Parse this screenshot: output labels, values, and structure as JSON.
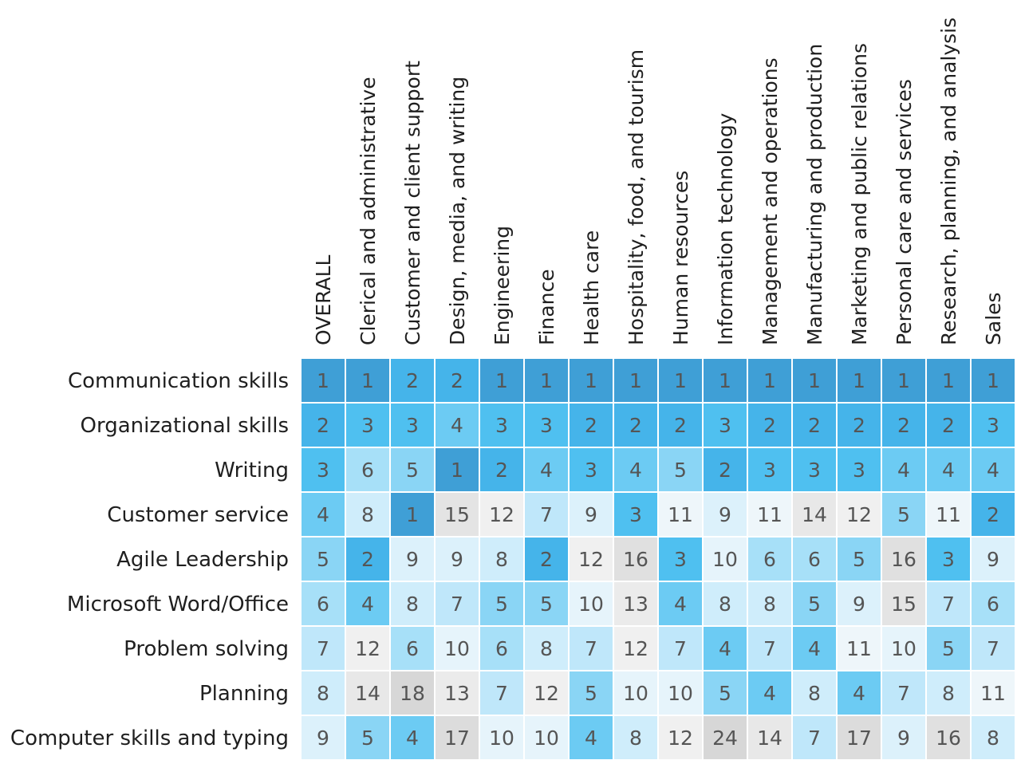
{
  "chart_data": {
    "type": "heatmap",
    "value_meaning": "rank",
    "columns": [
      "OVERALL",
      "Clerical and administrative",
      "Customer and client support",
      "Design, media, and writing",
      "Engineering",
      "Finance",
      "Health care",
      "Hospitality, food, and tourism",
      "Human resources",
      "Information technology",
      "Management and operations",
      "Manufacturing and production",
      "Marketing and public relations",
      "Personal care and services",
      "Research, planning, and analysis",
      "Sales"
    ],
    "rows": [
      "Communication skills",
      "Organizational skills",
      "Writing",
      "Customer service",
      "Agile Leadership",
      "Microsoft Word/Office",
      "Problem solving",
      "Planning",
      "Computer skills and typing"
    ],
    "values": [
      [
        1,
        1,
        2,
        2,
        1,
        1,
        1,
        1,
        1,
        1,
        1,
        1,
        1,
        1,
        1,
        1
      ],
      [
        2,
        3,
        3,
        4,
        3,
        3,
        2,
        2,
        2,
        3,
        2,
        2,
        2,
        2,
        2,
        3
      ],
      [
        3,
        6,
        5,
        1,
        2,
        4,
        3,
        4,
        5,
        2,
        3,
        3,
        3,
        4,
        4,
        4
      ],
      [
        4,
        8,
        1,
        15,
        12,
        7,
        9,
        3,
        11,
        9,
        11,
        14,
        12,
        5,
        11,
        2
      ],
      [
        5,
        2,
        9,
        9,
        8,
        2,
        12,
        16,
        3,
        10,
        6,
        6,
        5,
        16,
        3,
        9
      ],
      [
        6,
        4,
        8,
        7,
        5,
        5,
        10,
        13,
        4,
        8,
        8,
        5,
        9,
        15,
        7,
        6
      ],
      [
        7,
        12,
        6,
        10,
        6,
        8,
        7,
        12,
        7,
        4,
        7,
        4,
        11,
        10,
        5,
        7
      ],
      [
        8,
        14,
        18,
        13,
        7,
        12,
        5,
        10,
        10,
        5,
        4,
        8,
        4,
        7,
        8,
        11
      ],
      [
        9,
        5,
        4,
        17,
        10,
        10,
        4,
        8,
        12,
        24,
        14,
        7,
        17,
        9,
        16,
        8
      ]
    ],
    "highlight_row": "Agile Leadership",
    "colors": {
      "rank_1": "#3f9fd6",
      "rank_2": "#45b4ea",
      "rank_3": "#4fc0f0",
      "rank_4": "#6ccbf3",
      "rank_5": "#8ad5f5",
      "rank_6": "#a7e0f8",
      "rank_7": "#bfe7fa",
      "rank_8": "#cfedfb",
      "rank_9": "#dcf1fb",
      "rank_10": "#e6f4fb",
      "rank_11": "#eef6fa",
      "rank_12": "#f0f0f0",
      "rank_13": "#ebebeb",
      "rank_14": "#e8e8e8",
      "rank_15": "#e4e4e4",
      "rank_16": "#e0e0e0",
      "rank_17": "#dcdcdc",
      "rank_18_plus": "#d7d7d7",
      "highlight_label": "#666666"
    }
  }
}
